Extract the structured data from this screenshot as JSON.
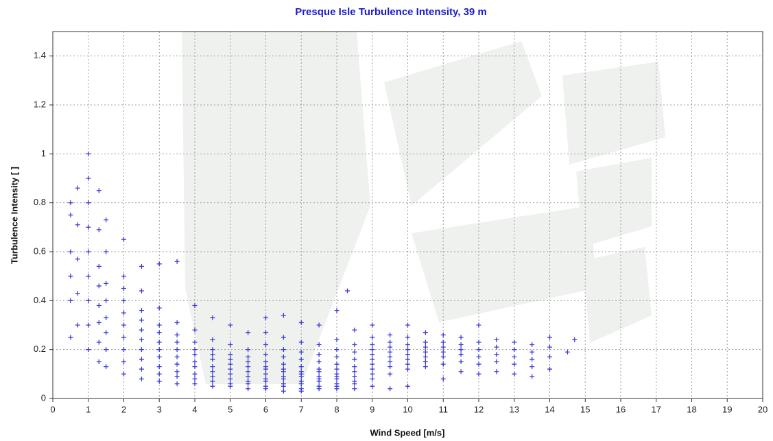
{
  "chart_data": {
    "type": "scatter",
    "title": "Presque Isle Turbulence Intensity, 39 m",
    "x_label": "Wind Speed [m/s]",
    "y_label": "Turbulence Intensity [ ]",
    "color": "#3a3ad6",
    "grid": true,
    "xlim": [
      0,
      20
    ],
    "ylim": [
      0,
      1.5
    ],
    "xticks": [
      0,
      1,
      2,
      3,
      4,
      5,
      6,
      7,
      8,
      9,
      10,
      11,
      12,
      13,
      14,
      15,
      16,
      17,
      18,
      19,
      20
    ],
    "yticks": [
      0,
      0.2,
      0.4,
      0.6,
      0.8,
      1,
      1.2,
      1.4
    ],
    "x": [
      0.5,
      0.5,
      0.5,
      0.5,
      0.5,
      0.5,
      0.7,
      0.7,
      0.7,
      0.7,
      0.7,
      1.0,
      1.0,
      1.0,
      1.0,
      1.0,
      1.0,
      1.0,
      1.0,
      1.0,
      1.3,
      1.3,
      1.3,
      1.3,
      1.3,
      1.3,
      1.3,
      1.3,
      1.5,
      1.5,
      1.5,
      1.5,
      1.5,
      1.5,
      1.5,
      1.5,
      2.0,
      2.0,
      2.0,
      2.0,
      2.0,
      2.0,
      2.0,
      2.0,
      2.0,
      2.0,
      2.5,
      2.5,
      2.5,
      2.5,
      2.5,
      2.5,
      2.5,
      2.5,
      2.5,
      2.5,
      3.0,
      3.0,
      3.0,
      3.0,
      3.0,
      3.0,
      3.0,
      3.0,
      3.0,
      3.0,
      3.5,
      3.5,
      3.5,
      3.5,
      3.5,
      3.5,
      3.5,
      3.5,
      3.5,
      3.5,
      4.0,
      4.0,
      4.0,
      4.0,
      4.0,
      4.0,
      4.0,
      4.0,
      4.0,
      4.0,
      4.5,
      4.5,
      4.5,
      4.5,
      4.5,
      4.5,
      4.5,
      4.5,
      4.5,
      4.5,
      5.0,
      5.0,
      5.0,
      5.0,
      5.0,
      5.0,
      5.0,
      5.0,
      5.0,
      5.0,
      5.5,
      5.5,
      5.5,
      5.5,
      5.5,
      5.5,
      5.5,
      5.5,
      5.5,
      5.5,
      6.0,
      6.0,
      6.0,
      6.0,
      6.0,
      6.0,
      6.0,
      6.0,
      6.0,
      6.0,
      6.0,
      6.0,
      6.5,
      6.5,
      6.5,
      6.5,
      6.5,
      6.5,
      6.5,
      6.5,
      6.5,
      6.5,
      6.5,
      6.5,
      7.0,
      7.0,
      7.0,
      7.0,
      7.0,
      7.0,
      7.0,
      7.0,
      7.0,
      7.0,
      7.0,
      7.0,
      7.5,
      7.5,
      7.5,
      7.5,
      7.5,
      7.5,
      7.5,
      7.5,
      7.5,
      7.5,
      7.5,
      8.0,
      8.0,
      8.0,
      8.0,
      8.0,
      8.0,
      8.0,
      8.0,
      8.0,
      8.0,
      8.0,
      8.0,
      8.3,
      8.5,
      8.5,
      8.5,
      8.5,
      8.5,
      8.5,
      8.5,
      8.5,
      8.5,
      8.5,
      9.0,
      9.0,
      9.0,
      9.0,
      9.0,
      9.0,
      9.0,
      9.0,
      9.0,
      9.0,
      9.0,
      9.5,
      9.5,
      9.5,
      9.5,
      9.5,
      9.5,
      9.5,
      9.5,
      9.5,
      10.0,
      10.0,
      10.0,
      10.0,
      10.0,
      10.0,
      10.0,
      10.0,
      10.0,
      10.5,
      10.5,
      10.5,
      10.5,
      10.5,
      10.5,
      10.5,
      11.0,
      11.0,
      11.0,
      11.0,
      11.0,
      11.0,
      11.0,
      11.5,
      11.5,
      11.5,
      11.5,
      11.5,
      11.5,
      12.0,
      12.0,
      12.0,
      12.0,
      12.0,
      12.0,
      12.5,
      12.5,
      12.5,
      12.5,
      12.5,
      13.0,
      13.0,
      13.0,
      13.0,
      13.0,
      13.5,
      13.5,
      13.5,
      13.5,
      13.5,
      14.0,
      14.0,
      14.0,
      14.0,
      14.5,
      14.7
    ],
    "values": [
      0.25,
      0.4,
      0.5,
      0.6,
      0.75,
      0.8,
      0.3,
      0.43,
      0.57,
      0.71,
      0.86,
      0.2,
      0.3,
      0.4,
      0.5,
      0.6,
      0.7,
      0.8,
      0.9,
      1.0,
      0.15,
      0.23,
      0.31,
      0.38,
      0.46,
      0.54,
      0.69,
      0.85,
      0.13,
      0.2,
      0.27,
      0.33,
      0.4,
      0.47,
      0.6,
      0.73,
      0.1,
      0.15,
      0.2,
      0.25,
      0.3,
      0.35,
      0.4,
      0.45,
      0.5,
      0.65,
      0.08,
      0.12,
      0.16,
      0.2,
      0.24,
      0.28,
      0.32,
      0.36,
      0.44,
      0.54,
      0.07,
      0.1,
      0.13,
      0.17,
      0.2,
      0.23,
      0.27,
      0.3,
      0.37,
      0.55,
      0.06,
      0.09,
      0.11,
      0.14,
      0.17,
      0.2,
      0.23,
      0.26,
      0.31,
      0.56,
      0.06,
      0.08,
      0.1,
      0.13,
      0.15,
      0.18,
      0.2,
      0.23,
      0.28,
      0.38,
      0.05,
      0.07,
      0.09,
      0.11,
      0.13,
      0.16,
      0.18,
      0.2,
      0.24,
      0.33,
      0.05,
      0.06,
      0.08,
      0.1,
      0.12,
      0.14,
      0.16,
      0.18,
      0.22,
      0.3,
      0.04,
      0.06,
      0.07,
      0.09,
      0.11,
      0.13,
      0.15,
      0.17,
      0.2,
      0.27,
      0.04,
      0.05,
      0.07,
      0.08,
      0.1,
      0.12,
      0.13,
      0.15,
      0.18,
      0.22,
      0.27,
      0.33,
      0.03,
      0.05,
      0.06,
      0.08,
      0.09,
      0.11,
      0.12,
      0.14,
      0.17,
      0.2,
      0.25,
      0.34,
      0.03,
      0.04,
      0.06,
      0.07,
      0.09,
      0.1,
      0.11,
      0.13,
      0.16,
      0.19,
      0.23,
      0.31,
      0.04,
      0.05,
      0.07,
      0.08,
      0.09,
      0.11,
      0.12,
      0.15,
      0.18,
      0.22,
      0.3,
      0.04,
      0.05,
      0.06,
      0.08,
      0.09,
      0.1,
      0.12,
      0.14,
      0.17,
      0.2,
      0.24,
      0.36,
      0.44,
      0.04,
      0.06,
      0.07,
      0.09,
      0.11,
      0.13,
      0.16,
      0.19,
      0.22,
      0.28,
      0.05,
      0.08,
      0.1,
      0.12,
      0.14,
      0.16,
      0.18,
      0.2,
      0.22,
      0.25,
      0.3,
      0.04,
      0.1,
      0.13,
      0.15,
      0.17,
      0.19,
      0.21,
      0.23,
      0.26,
      0.05,
      0.12,
      0.14,
      0.16,
      0.18,
      0.2,
      0.22,
      0.25,
      0.3,
      0.13,
      0.15,
      0.17,
      0.19,
      0.21,
      0.23,
      0.27,
      0.08,
      0.14,
      0.17,
      0.19,
      0.21,
      0.23,
      0.26,
      0.11,
      0.15,
      0.18,
      0.2,
      0.22,
      0.25,
      0.1,
      0.14,
      0.17,
      0.2,
      0.23,
      0.3,
      0.11,
      0.15,
      0.18,
      0.21,
      0.24,
      0.1,
      0.14,
      0.17,
      0.2,
      0.23,
      0.09,
      0.13,
      0.16,
      0.19,
      0.22,
      0.12,
      0.17,
      0.21,
      0.25,
      0.19,
      0.24
    ]
  }
}
